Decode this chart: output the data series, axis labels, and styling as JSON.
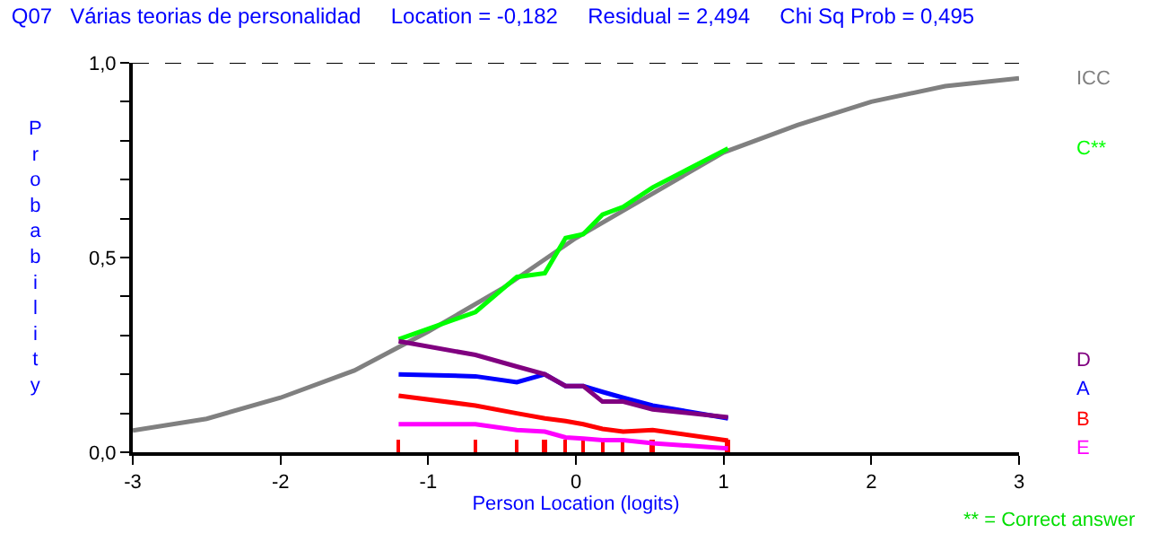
{
  "chart_data": {
    "type": "line",
    "title": "Q07   Várias teorias de personalidad     Location = -0,182     Residual = 2,494     Chi Sq Prob = 0,495",
    "xlabel": "Person Location (logits)",
    "ylabel": "Probability",
    "xlim": [
      -3,
      3
    ],
    "ylim": [
      0,
      1
    ],
    "xticks": [
      -3,
      -2,
      -1,
      0,
      1,
      2,
      3
    ],
    "yticks": [
      {
        "value": 0,
        "label": "0,0"
      },
      {
        "value": 0.1,
        "label": null
      },
      {
        "value": 0.2,
        "label": null
      },
      {
        "value": 0.3,
        "label": null
      },
      {
        "value": 0.4,
        "label": null
      },
      {
        "value": 0.5,
        "label": "0,5"
      },
      {
        "value": 0.6,
        "label": null
      },
      {
        "value": 0.7,
        "label": null
      },
      {
        "value": 0.8,
        "label": null
      },
      {
        "value": 0.9,
        "label": null
      },
      {
        "value": 1,
        "label": "1,0"
      }
    ],
    "legend": false,
    "marker": "none",
    "line_style": "solid",
    "ref_lines": [
      {
        "axis": "y",
        "value": 1,
        "color": "#000000",
        "line_style": "dashed"
      }
    ],
    "annotations": [
      "** = Correct answer"
    ],
    "series": [
      {
        "name": "ICC",
        "color": "#808080",
        "x": [
          -3,
          -2.5,
          -2,
          -1.5,
          -1,
          -0.5,
          0,
          0.5,
          1,
          1.5,
          2,
          2.5,
          3
        ],
        "values": [
          0.056,
          0.086,
          0.14,
          0.21,
          0.31,
          0.42,
          0.55,
          0.66,
          0.77,
          0.84,
          0.9,
          0.94,
          0.96
        ]
      },
      {
        "name": "C**",
        "color": "#00ff00",
        "x": [
          -1.2,
          -0.68,
          -0.4,
          -0.21,
          -0.07,
          0.05,
          0.18,
          0.32,
          0.52,
          1.03
        ],
        "values": [
          0.29,
          0.36,
          0.45,
          0.46,
          0.55,
          0.56,
          0.61,
          0.63,
          0.68,
          0.78
        ]
      },
      {
        "name": "A",
        "color": "#0000ff",
        "x": [
          -1.2,
          -0.68,
          -0.4,
          -0.21,
          -0.07,
          0.05,
          0.18,
          0.32,
          0.52,
          1.03
        ],
        "values": [
          0.2,
          0.195,
          0.18,
          0.2,
          0.17,
          0.17,
          0.155,
          0.14,
          0.12,
          0.087
        ]
      },
      {
        "name": "D",
        "color": "#800080",
        "x": [
          -1.2,
          -0.68,
          -0.4,
          -0.21,
          -0.07,
          0.05,
          0.18,
          0.32,
          0.52,
          1.03
        ],
        "values": [
          0.285,
          0.25,
          0.22,
          0.2,
          0.17,
          0.17,
          0.13,
          0.13,
          0.11,
          0.09
        ]
      },
      {
        "name": "B",
        "color": "#ff0000",
        "x": [
          -1.2,
          -0.68,
          -0.4,
          -0.21,
          -0.07,
          0.05,
          0.18,
          0.32,
          0.52,
          1.03
        ],
        "values": [
          0.145,
          0.12,
          0.1,
          0.087,
          0.08,
          0.072,
          0.06,
          0.053,
          0.057,
          0.03
        ]
      },
      {
        "name": "E",
        "color": "#ff00ff",
        "x": [
          -1.2,
          -0.68,
          -0.4,
          -0.21,
          -0.07,
          0.05,
          0.18,
          0.32,
          0.52,
          1.03
        ],
        "values": [
          0.072,
          0.072,
          0.057,
          0.053,
          0.038,
          0.035,
          0.031,
          0.031,
          0.023,
          0.01
        ]
      },
      {
        "type": "bar",
        "color": "#ff0000",
        "x": [
          -1.2,
          -0.68,
          -0.4,
          -0.21,
          -0.07,
          0.05,
          0.18,
          0.32,
          0.52,
          1.03
        ],
        "values": [
          0.03,
          0.03,
          0.03,
          0.03,
          0.03,
          0.03,
          0.03,
          0.03,
          0.03,
          0.03
        ]
      }
    ]
  }
}
